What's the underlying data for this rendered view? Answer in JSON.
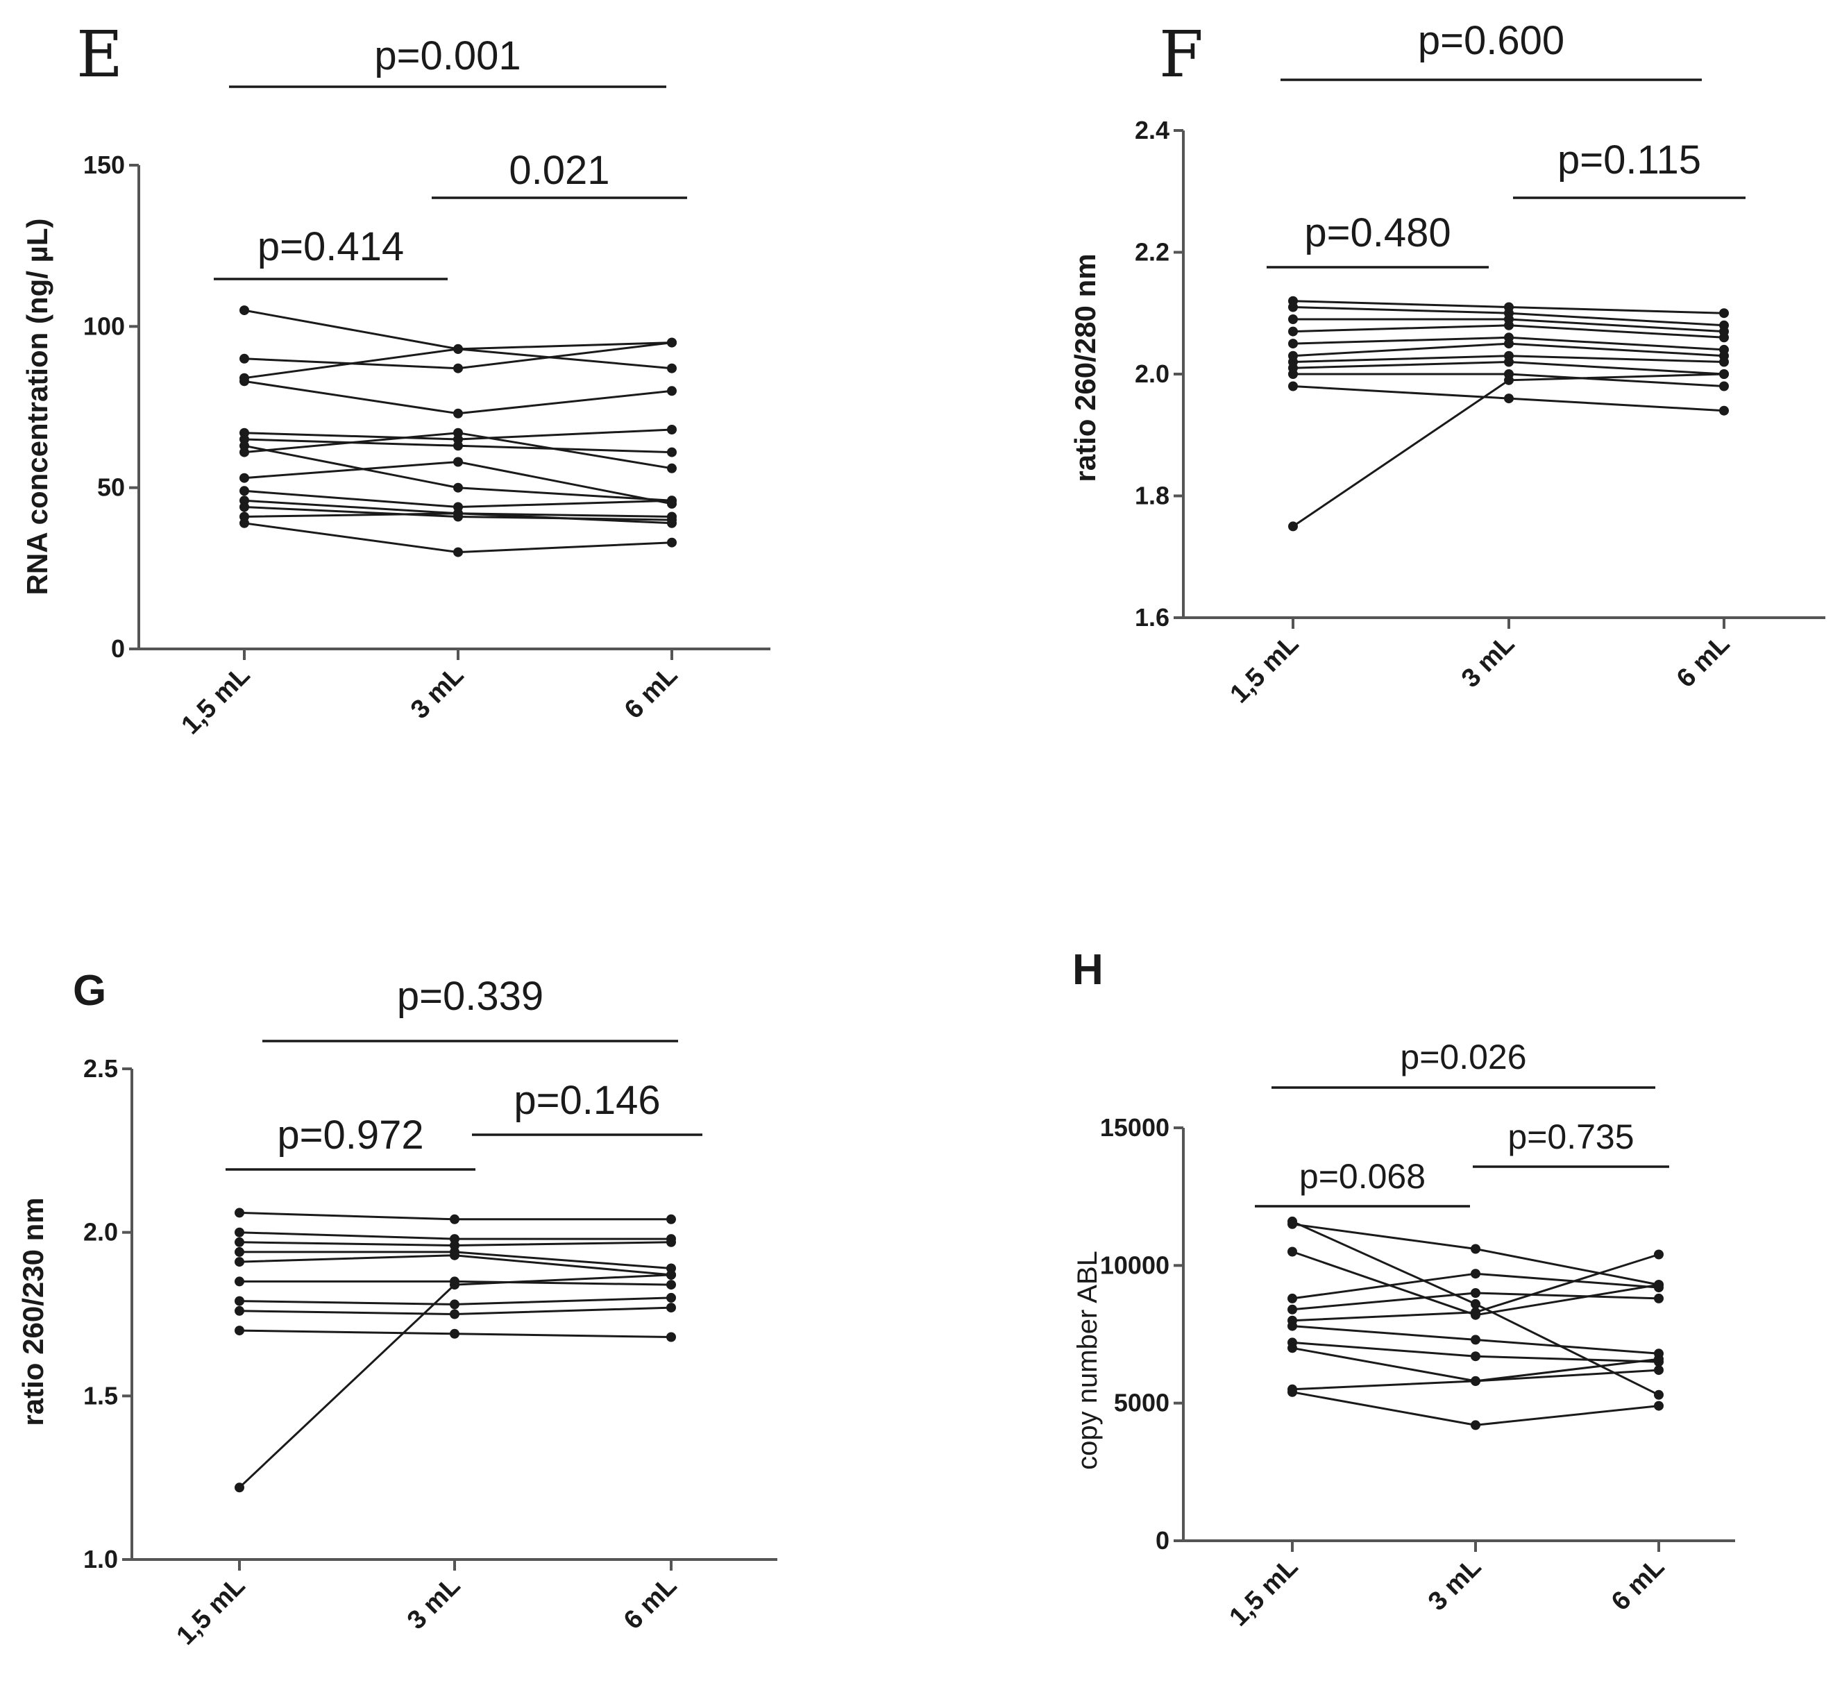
{
  "chart_data": [
    {
      "panel": "E",
      "type": "line",
      "ylabel": "RNA concentration (ng/ µL)",
      "categories": [
        "1,5 mL",
        "3 mL",
        "6 mL"
      ],
      "ylim": [
        0,
        150
      ],
      "yticks": [
        "0",
        "50",
        "100",
        "150"
      ],
      "brackets": [
        {
          "label": "p=0.001",
          "from": 0,
          "to": 2
        },
        {
          "label": "0.021",
          "from": 1,
          "to": 2
        },
        {
          "label": "p=0.414",
          "from": 0,
          "to": 1
        }
      ],
      "series": [
        {
          "values": [
            105,
            93,
            95
          ]
        },
        {
          "values": [
            90,
            87,
            95
          ]
        },
        {
          "values": [
            84,
            93,
            87
          ]
        },
        {
          "values": [
            83,
            73,
            80
          ]
        },
        {
          "values": [
            67,
            65,
            68
          ]
        },
        {
          "values": [
            65,
            63,
            61
          ]
        },
        {
          "values": [
            63,
            50,
            46
          ]
        },
        {
          "values": [
            61,
            67,
            56
          ]
        },
        {
          "values": [
            53,
            58,
            45
          ]
        },
        {
          "values": [
            49,
            44,
            46
          ]
        },
        {
          "values": [
            46,
            42,
            41
          ]
        },
        {
          "values": [
            44,
            41,
            40
          ]
        },
        {
          "values": [
            41,
            42,
            39
          ]
        },
        {
          "values": [
            39,
            30,
            33
          ]
        }
      ]
    },
    {
      "panel": "F",
      "type": "line",
      "ylabel": "ratio 260/280 nm",
      "categories": [
        "1,5 mL",
        "3 mL",
        "6 mL"
      ],
      "ylim": [
        1.6,
        2.4
      ],
      "yticks": [
        "1.6",
        "1.8",
        "2.0",
        "2.2",
        "2.4"
      ],
      "brackets": [
        {
          "label": "p=0.600",
          "from": 0,
          "to": 2
        },
        {
          "label": "p=0.115",
          "from": 1,
          "to": 2
        },
        {
          "label": "p=0.480",
          "from": 0,
          "to": 1
        }
      ],
      "series": [
        {
          "values": [
            2.12,
            2.11,
            2.1
          ]
        },
        {
          "values": [
            2.11,
            2.1,
            2.08
          ]
        },
        {
          "values": [
            2.09,
            2.09,
            2.07
          ]
        },
        {
          "values": [
            2.07,
            2.08,
            2.06
          ]
        },
        {
          "values": [
            2.05,
            2.06,
            2.04
          ]
        },
        {
          "values": [
            2.03,
            2.05,
            2.03
          ]
        },
        {
          "values": [
            2.02,
            2.03,
            2.02
          ]
        },
        {
          "values": [
            2.01,
            2.02,
            2.0
          ]
        },
        {
          "values": [
            2.0,
            2.0,
            1.98
          ]
        },
        {
          "values": [
            1.98,
            1.96,
            1.94
          ]
        },
        {
          "values": [
            1.75,
            1.99,
            2.0
          ]
        }
      ]
    },
    {
      "panel": "G",
      "type": "line",
      "ylabel": "ratio 260/230 nm",
      "categories": [
        "1,5 mL",
        "3 mL",
        "6 mL"
      ],
      "ylim": [
        1.0,
        2.5
      ],
      "yticks": [
        "1.0",
        "1.5",
        "2.0",
        "2.5"
      ],
      "brackets": [
        {
          "label": "p=0.339",
          "from": 0,
          "to": 2
        },
        {
          "label": "p=0.146",
          "from": 1,
          "to": 2
        },
        {
          "label": "p=0.972",
          "from": 0,
          "to": 1
        }
      ],
      "series": [
        {
          "values": [
            2.06,
            2.04,
            2.04
          ]
        },
        {
          "values": [
            2.0,
            1.98,
            1.98
          ]
        },
        {
          "values": [
            1.97,
            1.96,
            1.97
          ]
        },
        {
          "values": [
            1.94,
            1.94,
            1.89
          ]
        },
        {
          "values": [
            1.91,
            1.93,
            1.87
          ]
        },
        {
          "values": [
            1.85,
            1.85,
            1.84
          ]
        },
        {
          "values": [
            1.79,
            1.78,
            1.8
          ]
        },
        {
          "values": [
            1.76,
            1.75,
            1.77
          ]
        },
        {
          "values": [
            1.7,
            1.69,
            1.68
          ]
        },
        {
          "values": [
            1.22,
            1.84,
            1.87
          ]
        }
      ]
    },
    {
      "panel": "H",
      "type": "line",
      "ylabel": "copy number ABL",
      "categories": [
        "1,5 mL",
        "3 mL",
        "6 mL"
      ],
      "ylim": [
        0,
        15000
      ],
      "yticks": [
        "0",
        "5000",
        "10000",
        "15000"
      ],
      "brackets": [
        {
          "label": "p=0.026",
          "from": 0,
          "to": 2
        },
        {
          "label": "p=0.735",
          "from": 1,
          "to": 2
        },
        {
          "label": "p=0.068",
          "from": 0,
          "to": 1
        }
      ],
      "series": [
        {
          "values": [
            11600,
            8600,
            5300
          ]
        },
        {
          "values": [
            11500,
            10600,
            9300
          ]
        },
        {
          "values": [
            10500,
            8200,
            9300
          ]
        },
        {
          "values": [
            8800,
            9700,
            9200
          ]
        },
        {
          "values": [
            8400,
            9000,
            8800
          ]
        },
        {
          "values": [
            8000,
            8300,
            10400
          ]
        },
        {
          "values": [
            7800,
            7300,
            6800
          ]
        },
        {
          "values": [
            7200,
            6700,
            6500
          ]
        },
        {
          "values": [
            7000,
            5800,
            6200
          ]
        },
        {
          "values": [
            5500,
            5800,
            6600
          ]
        },
        {
          "values": [
            5400,
            4200,
            4900
          ]
        }
      ]
    }
  ]
}
